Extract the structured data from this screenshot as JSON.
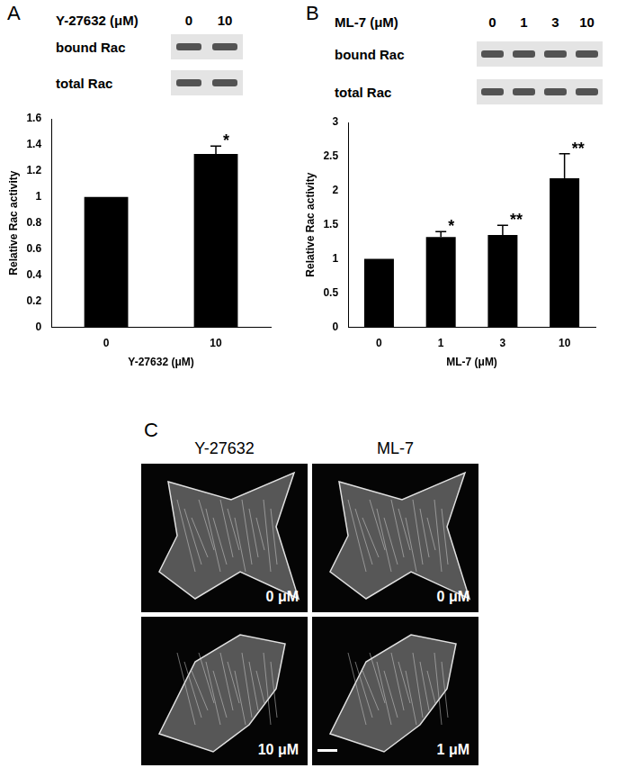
{
  "chart_data": [
    {
      "type": "bar",
      "x_label": "Y-27632 (μM)",
      "y_label": "Relative Rac activity",
      "categories": [
        "0",
        "10"
      ],
      "values": [
        1,
        1.33
      ],
      "errors": [
        0,
        0.06
      ],
      "annotations": [
        null,
        "*"
      ],
      "color": "#000000",
      "ylim": [
        0,
        1.6
      ],
      "yticks": [
        0,
        0.2,
        0.4,
        0.6,
        0.8,
        1,
        1.2,
        1.4,
        1.6
      ],
      "grid": false
    },
    {
      "type": "bar",
      "x_label": "ML-7 (μM)",
      "y_label": "Relative Rac activity",
      "categories": [
        "0",
        "1",
        "3",
        "10"
      ],
      "values": [
        1,
        1.32,
        1.35,
        2.18
      ],
      "errors": [
        0,
        0.08,
        0.14,
        0.36
      ],
      "annotations": [
        null,
        "*",
        "**",
        "**"
      ],
      "color": "#000000",
      "ylim": [
        0,
        3
      ],
      "yticks": [
        0,
        0.5,
        1,
        1.5,
        2,
        2.5,
        3
      ],
      "grid": false
    }
  ],
  "figure": {
    "panels": [
      {
        "label": "A",
        "blot": {
          "treatment": "Y-27632 (μM)",
          "lanes": [
            "0",
            "10"
          ],
          "rows": [
            "bound Rac",
            "total Rac"
          ]
        }
      },
      {
        "label": "B",
        "blot": {
          "treatment": "ML-7 (μM)",
          "lanes": [
            "0",
            "1",
            "3",
            "10"
          ],
          "rows": [
            "bound Rac",
            "total Rac"
          ]
        }
      },
      {
        "label": "C",
        "columns": [
          {
            "title": "Y-27632",
            "images": [
              "0 μM",
              "10 μM"
            ]
          },
          {
            "title": "ML-7",
            "images": [
              "0 μM",
              "1 μM"
            ]
          }
        ]
      }
    ]
  }
}
